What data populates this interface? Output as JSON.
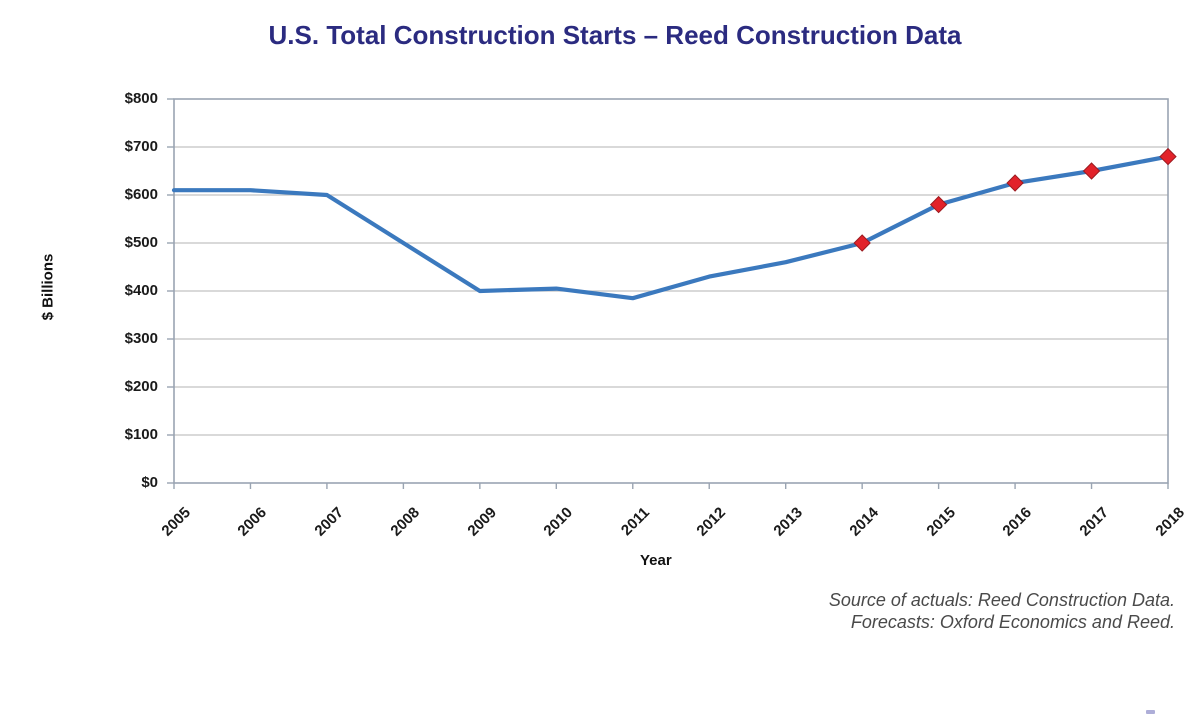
{
  "chart_data": {
    "type": "line",
    "title": "U.S. Total Construction Starts – Reed Construction Data",
    "xlabel": "Year",
    "ylabel": "$ Billions",
    "categories": [
      "2005",
      "2006",
      "2007",
      "2008",
      "2009",
      "2010",
      "2011",
      "2012",
      "2013",
      "2014",
      "2015",
      "2016",
      "2017",
      "2018"
    ],
    "series": [
      {
        "name": "U.S. Total Construction Starts ($ Billions)",
        "values": [
          610,
          610,
          600,
          500,
          400,
          405,
          385,
          430,
          460,
          500,
          580,
          625,
          650,
          680
        ]
      }
    ],
    "marker_categories": [
      "2014",
      "2015",
      "2016",
      "2017",
      "2018"
    ],
    "marker_shape": "diamond",
    "ylim": [
      0,
      800
    ],
    "ytick_step": 100,
    "ytick_labels": [
      "$0",
      "$100",
      "$200",
      "$300",
      "$400",
      "$500",
      "$600",
      "$700",
      "$800"
    ],
    "grid": "horizontal-only",
    "legend": "none",
    "colors": {
      "line": "#3B79BE",
      "marker_fill": "#E2222A",
      "marker_edge": "#9B1B20",
      "grid": "#C2C2C2",
      "frame": "#9AA4B2",
      "title": "#2B2B80",
      "tick_text": "#1a1a1a"
    }
  },
  "source_note": {
    "line1": "Source of actuals: Reed Construction Data.",
    "line2": "Forecasts: Oxford Economics and Reed."
  }
}
